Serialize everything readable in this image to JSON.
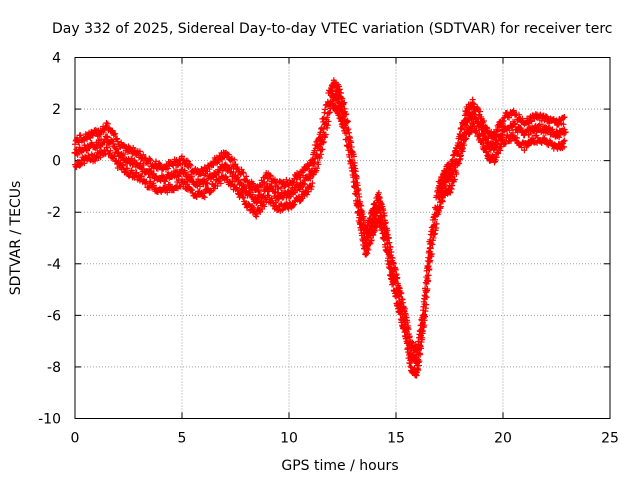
{
  "chart_data": {
    "type": "scatter",
    "title": "Day 332 of 2025, Sidereal Day-to-day VTEC variation (SDTVAR) for receiver terc",
    "xlabel": "GPS time / hours",
    "ylabel": "SDTVAR / TECUs",
    "xlim": [
      0,
      25
    ],
    "ylim": [
      -10,
      4
    ],
    "xticks": [
      "0",
      "5",
      "10",
      "15",
      "20",
      "25"
    ],
    "yticks": [
      "4",
      "2",
      "0",
      "-2",
      "-4",
      "-6",
      "-8",
      "-10"
    ],
    "grid": true,
    "marker": "+",
    "color": "#ff0000",
    "series": [
      {
        "name": "SDTVAR",
        "values": [
          {
            "x": 0.0,
            "y": 0.3
          },
          {
            "x": 0.5,
            "y": 0.5
          },
          {
            "x": 1.0,
            "y": 0.6
          },
          {
            "x": 1.5,
            "y": 0.9
          },
          {
            "x": 2.0,
            "y": 0.3
          },
          {
            "x": 2.5,
            "y": 0.0
          },
          {
            "x": 3.0,
            "y": -0.2
          },
          {
            "x": 3.5,
            "y": -0.5
          },
          {
            "x": 4.0,
            "y": -0.7
          },
          {
            "x": 4.5,
            "y": -0.6
          },
          {
            "x": 5.0,
            "y": -0.4
          },
          {
            "x": 5.5,
            "y": -0.8
          },
          {
            "x": 6.0,
            "y": -0.9
          },
          {
            "x": 6.5,
            "y": -0.5
          },
          {
            "x": 7.0,
            "y": -0.2
          },
          {
            "x": 7.5,
            "y": -0.6
          },
          {
            "x": 8.0,
            "y": -1.2
          },
          {
            "x": 8.5,
            "y": -1.6
          },
          {
            "x": 9.0,
            "y": -1.0
          },
          {
            "x": 9.5,
            "y": -1.4
          },
          {
            "x": 10.0,
            "y": -1.3
          },
          {
            "x": 10.5,
            "y": -1.0
          },
          {
            "x": 11.0,
            "y": -0.6
          },
          {
            "x": 11.5,
            "y": 0.8
          },
          {
            "x": 12.0,
            "y": 2.6
          },
          {
            "x": 12.3,
            "y": 2.4
          },
          {
            "x": 12.6,
            "y": 1.6
          },
          {
            "x": 13.0,
            "y": -0.2
          },
          {
            "x": 13.3,
            "y": -2.0
          },
          {
            "x": 13.6,
            "y": -3.2
          },
          {
            "x": 13.9,
            "y": -2.4
          },
          {
            "x": 14.2,
            "y": -1.8
          },
          {
            "x": 14.5,
            "y": -2.8
          },
          {
            "x": 14.8,
            "y": -4.2
          },
          {
            "x": 15.1,
            "y": -5.2
          },
          {
            "x": 15.4,
            "y": -6.2
          },
          {
            "x": 15.7,
            "y": -7.6
          },
          {
            "x": 16.0,
            "y": -7.8
          },
          {
            "x": 16.3,
            "y": -6.0
          },
          {
            "x": 16.6,
            "y": -3.4
          },
          {
            "x": 17.0,
            "y": -1.4
          },
          {
            "x": 17.3,
            "y": -0.8
          },
          {
            "x": 17.6,
            "y": -0.6
          },
          {
            "x": 18.0,
            "y": 0.6
          },
          {
            "x": 18.3,
            "y": 1.5
          },
          {
            "x": 18.6,
            "y": 1.8
          },
          {
            "x": 19.0,
            "y": 1.2
          },
          {
            "x": 19.3,
            "y": 0.6
          },
          {
            "x": 19.6,
            "y": 0.5
          },
          {
            "x": 20.0,
            "y": 1.2
          },
          {
            "x": 20.5,
            "y": 1.4
          },
          {
            "x": 21.0,
            "y": 1.0
          },
          {
            "x": 21.5,
            "y": 1.3
          },
          {
            "x": 22.0,
            "y": 1.2
          },
          {
            "x": 22.5,
            "y": 1.0
          },
          {
            "x": 22.9,
            "y": 1.1
          }
        ]
      }
    ]
  }
}
